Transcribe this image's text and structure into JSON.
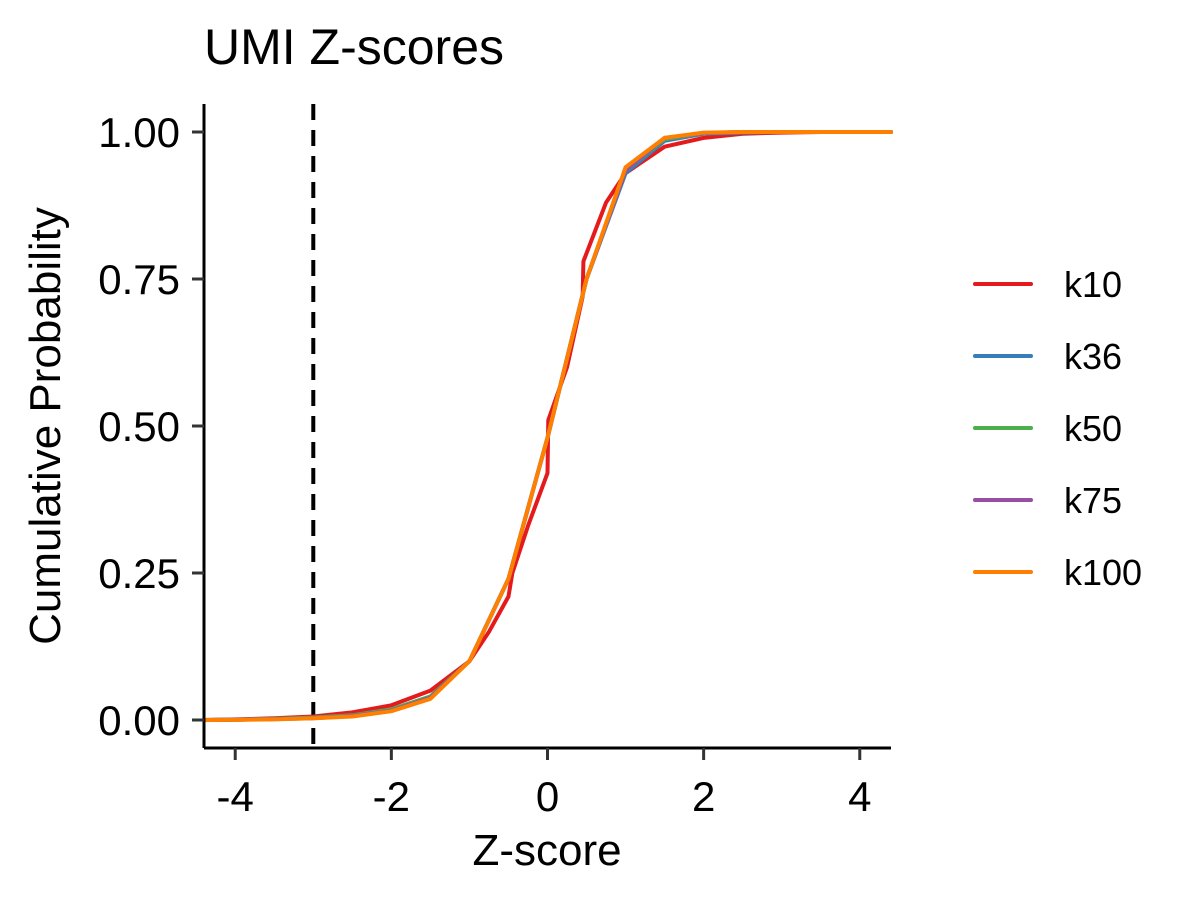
{
  "chart_data": {
    "type": "line",
    "title": "UMI Z-scores",
    "xlabel": "Z-score",
    "ylabel": "Cumulative Probability",
    "xlim": [
      -4.4,
      4.4
    ],
    "ylim": [
      0,
      1
    ],
    "x_ticks": [
      -4,
      -2,
      0,
      2,
      4
    ],
    "x_tick_labels": [
      "-4",
      "-2",
      "0",
      "2",
      "4"
    ],
    "y_ticks": [
      0,
      0.25,
      0.5,
      0.75,
      1
    ],
    "y_tick_labels": [
      "0.00",
      "0.25",
      "0.50",
      "0.75",
      "1.00"
    ],
    "grid": false,
    "legend_position": "right",
    "reference_line": {
      "x": -3,
      "style": "dashed",
      "color": "#000000"
    },
    "series": [
      {
        "name": "k10",
        "color": "#E41A1C",
        "x": [
          -4.4,
          -4,
          -3.5,
          -3,
          -2.5,
          -2,
          -1.5,
          -1,
          -0.75,
          -0.5,
          -0.45,
          -0.25,
          0,
          0.01,
          0.25,
          0.45,
          0.46,
          0.75,
          1,
          1.5,
          2,
          2.5,
          3,
          3.5,
          4,
          4.4
        ],
        "y": [
          0,
          0.001,
          0.003,
          0.006,
          0.013,
          0.025,
          0.05,
          0.1,
          0.15,
          0.21,
          0.25,
          0.33,
          0.42,
          0.51,
          0.6,
          0.72,
          0.78,
          0.88,
          0.93,
          0.975,
          0.99,
          0.997,
          0.999,
          1,
          1,
          1
        ]
      },
      {
        "name": "k36",
        "color": "#377EB8",
        "x": [
          -4.4,
          -4,
          -3.5,
          -3,
          -2.5,
          -2,
          -1.5,
          -1,
          -0.5,
          0,
          0.5,
          1,
          1.5,
          2,
          2.5,
          3,
          3.5,
          4,
          4.4
        ],
        "y": [
          0,
          0.0005,
          0.002,
          0.004,
          0.008,
          0.018,
          0.04,
          0.1,
          0.24,
          0.48,
          0.75,
          0.93,
          0.985,
          0.997,
          0.999,
          1,
          1,
          1,
          1
        ]
      },
      {
        "name": "k50",
        "color": "#4DAF4A",
        "x": [
          -4.4,
          -4,
          -3.5,
          -3,
          -2.5,
          -2,
          -1.5,
          -1,
          -0.5,
          0,
          0.5,
          1,
          1.5,
          2,
          2.5,
          3,
          3.5,
          4,
          4.4
        ],
        "y": [
          0,
          0.0005,
          0.002,
          0.004,
          0.008,
          0.018,
          0.04,
          0.1,
          0.24,
          0.48,
          0.75,
          0.935,
          0.988,
          0.998,
          1,
          1,
          1,
          1,
          1
        ]
      },
      {
        "name": "k75",
        "color": "#984EA3",
        "x": [
          -4.4,
          -4,
          -3.5,
          -3,
          -2.5,
          -2,
          -1.5,
          -1,
          -0.5,
          0,
          0.5,
          1,
          1.5,
          2,
          2.5,
          3,
          3.5,
          4,
          4.4
        ],
        "y": [
          0,
          0.0004,
          0.0015,
          0.003,
          0.007,
          0.016,
          0.038,
          0.1,
          0.24,
          0.48,
          0.75,
          0.935,
          0.99,
          0.998,
          1,
          1,
          1,
          1,
          1
        ]
      },
      {
        "name": "k100",
        "color": "#FF7F00",
        "x": [
          -4.4,
          -4,
          -3.5,
          -3,
          -2.5,
          -2,
          -1.5,
          -1,
          -0.5,
          0,
          0.5,
          1,
          1.5,
          2,
          2.5,
          3,
          3.5,
          4,
          4.4
        ],
        "y": [
          0,
          0.0003,
          0.001,
          0.003,
          0.006,
          0.015,
          0.036,
          0.1,
          0.24,
          0.48,
          0.75,
          0.94,
          0.99,
          0.999,
          1,
          1,
          1,
          1,
          1
        ]
      }
    ]
  }
}
